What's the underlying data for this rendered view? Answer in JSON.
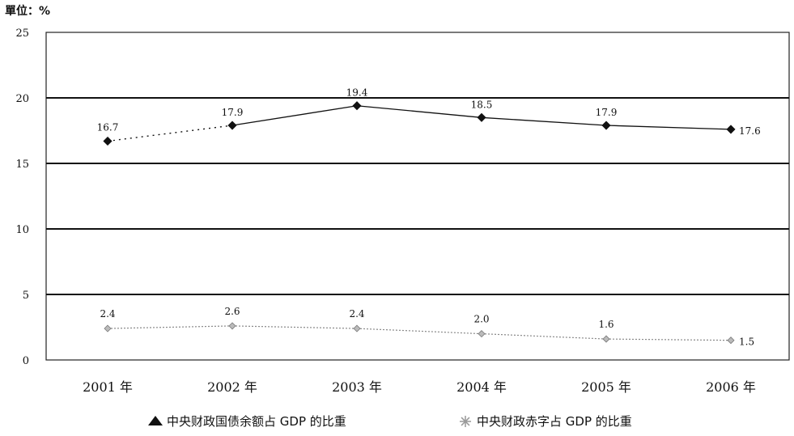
{
  "chart_data": {
    "type": "line",
    "unit_label": "單位：%",
    "categories": [
      "2001 年",
      "2002 年",
      "2003 年",
      "2004 年",
      "2005 年",
      "2006 年"
    ],
    "yticks": [
      "0",
      "5",
      "10",
      "15",
      "20",
      "25"
    ],
    "ylim": [
      0,
      25
    ],
    "grid": true,
    "legend_position": "bottom",
    "series": [
      {
        "name": "中央财政国债余额占 GDP 的比重",
        "values": [
          16.7,
          17.9,
          19.4,
          18.5,
          17.9,
          17.6
        ],
        "labels": [
          "16.7",
          "17.9",
          "19.4",
          "18.5",
          "17.9",
          "17.6"
        ],
        "color": "#111111",
        "marker": "diamond-filled"
      },
      {
        "name": "中央财政赤字占 GDP 的比重",
        "values": [
          2.4,
          2.6,
          2.4,
          2.0,
          1.6,
          1.5
        ],
        "labels": [
          "2.4",
          "2.6",
          "2.4",
          "2.0",
          "1.6",
          "1.5"
        ],
        "color": "#888888",
        "marker": "diamond-light"
      }
    ]
  }
}
